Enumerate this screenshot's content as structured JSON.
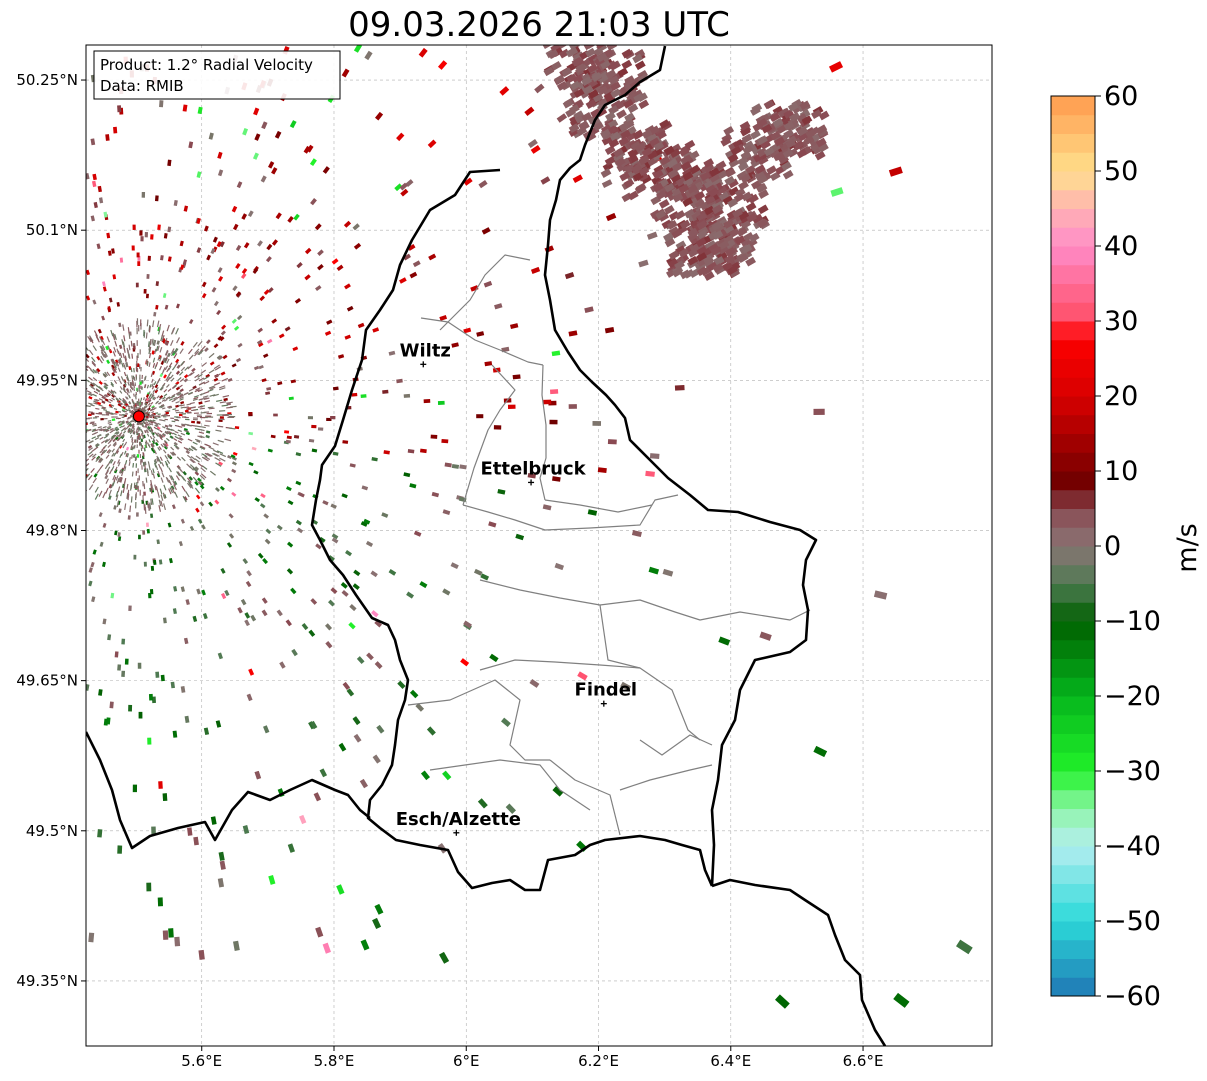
{
  "title": "09.03.2026 21:03 UTC",
  "info_box": {
    "product": "Product: 1.2° Radial Velocity",
    "data": "Data: RMIB"
  },
  "map": {
    "lon_range": [
      5.425,
      6.795
    ],
    "lat_range": [
      49.285,
      50.285
    ],
    "x_ticks": [
      {
        "value": 5.6,
        "label": "5.6°E"
      },
      {
        "value": 5.8,
        "label": "5.8°E"
      },
      {
        "value": 6.0,
        "label": "6°E"
      },
      {
        "value": 6.2,
        "label": "6.2°E"
      },
      {
        "value": 6.4,
        "label": "6.4°E"
      },
      {
        "value": 6.6,
        "label": "6.6°E"
      }
    ],
    "y_ticks": [
      {
        "value": 49.35,
        "label": "49.35°N"
      },
      {
        "value": 49.5,
        "label": "49.5°N"
      },
      {
        "value": 49.65,
        "label": "49.65°N"
      },
      {
        "value": 49.8,
        "label": "49.8°N"
      },
      {
        "value": 49.95,
        "label": "49.95°N"
      },
      {
        "value": 50.1,
        "label": "50.1°N"
      },
      {
        "value": 50.25,
        "label": "50.25°N"
      }
    ],
    "gridlines": true,
    "radar_site": {
      "lon": 5.505,
      "lat": 49.914,
      "color": "#ff0000"
    },
    "cities": [
      {
        "name": "Wiltz",
        "lon": 5.935,
        "lat": 49.966
      },
      {
        "name": "Ettelbruck",
        "lon": 6.098,
        "lat": 49.848
      },
      {
        "name": "Findel",
        "lon": 6.208,
        "lat": 49.627
      },
      {
        "name": "Esch/Alzette",
        "lon": 5.985,
        "lat": 49.498
      }
    ]
  },
  "colorbar": {
    "label": "m/s",
    "min": -60,
    "max": 60,
    "ticks": [
      {
        "value": 60,
        "label": "60"
      },
      {
        "value": 50,
        "label": "50"
      },
      {
        "value": 40,
        "label": "40"
      },
      {
        "value": 30,
        "label": "30"
      },
      {
        "value": 20,
        "label": "20"
      },
      {
        "value": 10,
        "label": "10"
      },
      {
        "value": 0,
        "label": "0"
      },
      {
        "value": -10,
        "label": "−10"
      },
      {
        "value": -20,
        "label": "−20"
      },
      {
        "value": -30,
        "label": "−30"
      },
      {
        "value": -40,
        "label": "−40"
      },
      {
        "value": -50,
        "label": "−50"
      },
      {
        "value": -60,
        "label": "−60"
      }
    ],
    "stops": [
      {
        "v": -60,
        "c": "#1f77b4"
      },
      {
        "v": -50,
        "c": "#2bd9d9"
      },
      {
        "v": -40,
        "c": "#b4eef0"
      },
      {
        "v": -35,
        "c": "#8ef5a8"
      },
      {
        "v": -30,
        "c": "#22f22a"
      },
      {
        "v": -20,
        "c": "#05b51c"
      },
      {
        "v": -10,
        "c": "#006000"
      },
      {
        "v": -5,
        "c": "#4f7a52"
      },
      {
        "v": 0,
        "c": "#8a7474"
      },
      {
        "v": 5,
        "c": "#8a4a52"
      },
      {
        "v": 8,
        "c": "#6d0000"
      },
      {
        "v": 20,
        "c": "#d80000"
      },
      {
        "v": 28,
        "c": "#ff0000"
      },
      {
        "v": 30,
        "c": "#ff4d66"
      },
      {
        "v": 40,
        "c": "#ff8cc8"
      },
      {
        "v": 45,
        "c": "#ffb3b3"
      },
      {
        "v": 50,
        "c": "#ffe08c"
      },
      {
        "v": 60,
        "c": "#ff9a4d"
      }
    ]
  }
}
